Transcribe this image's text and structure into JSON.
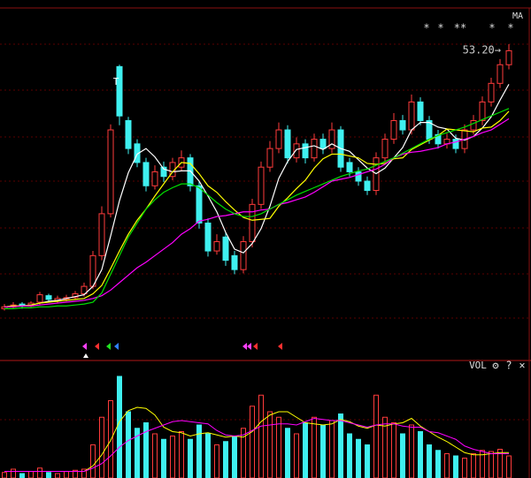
{
  "chart_data": {
    "type": "candlestick",
    "indicator": "MA",
    "markers": [
      "*",
      "*",
      "**",
      "*",
      "*"
    ],
    "annotations": {
      "high": "53.20→",
      "peak": "T"
    },
    "up_color": "#ff3b3b",
    "down_color": "#3ff0f0",
    "ylim": [
      20,
      57
    ],
    "open": [
      24.8,
      25.0,
      25.3,
      25.1,
      25.5,
      26.2,
      25.7,
      25.8,
      26.0,
      26.4,
      27.2,
      30.5,
      35.0,
      50.8,
      45.0,
      42.5,
      40.5,
      38.0,
      40.0,
      39.0,
      40.0,
      41.0,
      38.0,
      34.0,
      31.0,
      32.5,
      30.5,
      29.0,
      32.0,
      36.0,
      40.0,
      42.0,
      44.0,
      41.0,
      42.5,
      41.0,
      43.0,
      42.0,
      44.0,
      40.5,
      39.5,
      38.5,
      37.5,
      41.0,
      43.0,
      45.0,
      44.0,
      47.0,
      45.0,
      43.5,
      42.5,
      43.0,
      42.0,
      44.0,
      45.0,
      47.0,
      49.0,
      51.0
    ],
    "high": [
      25.3,
      25.5,
      25.5,
      25.6,
      26.6,
      26.4,
      26.2,
      26.3,
      26.7,
      27.6,
      31.0,
      35.8,
      44.6,
      51.0,
      45.4,
      43.0,
      41.0,
      40.2,
      40.6,
      41.0,
      41.8,
      41.4,
      38.5,
      34.5,
      32.8,
      33.0,
      31.0,
      32.6,
      36.6,
      40.6,
      42.8,
      44.8,
      44.5,
      43.2,
      43.0,
      43.6,
      43.6,
      44.8,
      44.4,
      41.0,
      40.0,
      39.0,
      41.6,
      43.6,
      45.8,
      45.6,
      47.8,
      47.5,
      45.5,
      44.0,
      43.6,
      43.5,
      44.6,
      45.6,
      47.6,
      49.6,
      51.6,
      53.2
    ],
    "low": [
      24.6,
      24.8,
      24.8,
      24.9,
      25.2,
      25.5,
      25.4,
      25.6,
      25.8,
      26.1,
      26.9,
      30.0,
      34.6,
      44.5,
      41.4,
      40.0,
      37.4,
      37.6,
      38.4,
      38.6,
      39.6,
      37.4,
      33.4,
      30.4,
      30.6,
      29.4,
      28.5,
      28.6,
      31.4,
      35.5,
      39.5,
      41.5,
      40.4,
      40.5,
      40.4,
      40.6,
      41.4,
      41.5,
      39.5,
      39.0,
      38.0,
      37.0,
      37.0,
      40.5,
      42.5,
      43.5,
      43.5,
      44.5,
      42.5,
      42.0,
      42.0,
      41.5,
      41.5,
      43.5,
      44.5,
      46.5,
      48.5,
      50.5
    ],
    "close": [
      25.0,
      25.2,
      25.1,
      25.4,
      26.3,
      25.8,
      25.9,
      26.0,
      26.4,
      27.2,
      30.5,
      35.0,
      44.0,
      45.5,
      42.0,
      40.5,
      38.0,
      39.5,
      39.0,
      40.5,
      41.0,
      38.0,
      34.0,
      31.0,
      32.0,
      30.0,
      29.0,
      32.0,
      36.0,
      40.0,
      42.0,
      44.0,
      41.0,
      42.5,
      41.0,
      43.0,
      42.0,
      44.0,
      40.0,
      39.5,
      38.5,
      37.5,
      41.0,
      43.0,
      45.0,
      44.0,
      47.0,
      45.0,
      43.0,
      42.5,
      43.0,
      42.0,
      44.0,
      45.0,
      47.0,
      49.0,
      51.0,
      52.5
    ],
    "ma_lines": [
      {
        "color": "#ffffff",
        "values": [
          25.0,
          25.1,
          25.1,
          25.2,
          25.4,
          25.6,
          25.7,
          25.9,
          26.1,
          26.3,
          27.2,
          29.0,
          32.6,
          36.4,
          39.4,
          41.4,
          42.0,
          41.1,
          39.8,
          39.5,
          39.6,
          39.6,
          38.5,
          36.9,
          35.2,
          33.0,
          31.2,
          30.8,
          31.8,
          33.4,
          35.8,
          38.8,
          40.6,
          41.9,
          42.1,
          42.3,
          41.9,
          42.5,
          42.0,
          41.7,
          40.8,
          39.9,
          39.3,
          39.9,
          41.0,
          42.1,
          44.0,
          44.8,
          44.8,
          44.3,
          44.1,
          43.1,
          42.9,
          43.3,
          44.2,
          45.4,
          47.2,
          48.9
        ]
      },
      {
        "color": "#ffff00",
        "values": [
          25.0,
          25.1,
          25.1,
          25.2,
          25.4,
          25.5,
          25.6,
          25.7,
          25.8,
          25.9,
          26.4,
          27.3,
          29.1,
          31.0,
          32.8,
          34.3,
          35.5,
          36.9,
          38.2,
          39.5,
          40.5,
          40.4,
          39.3,
          38.0,
          37.3,
          36.3,
          35.4,
          34.6,
          34.3,
          34.4,
          34.5,
          35.8,
          36.7,
          37.7,
          38.6,
          39.9,
          40.9,
          41.4,
          41.4,
          41.2,
          41.0,
          40.4,
          40.3,
          40.4,
          40.9,
          41.0,
          41.9,
          42.4,
          42.9,
          43.4,
          44.1,
          44.0,
          43.9,
          43.8,
          44.2,
          44.3,
          45.0,
          46.0
        ]
      },
      {
        "color": "#ff00ff",
        "values": [
          25.0,
          25.0,
          25.1,
          25.1,
          25.2,
          25.3,
          25.4,
          25.5,
          25.6,
          25.7,
          25.9,
          26.2,
          26.8,
          27.6,
          28.4,
          29.2,
          29.8,
          30.5,
          31.2,
          31.9,
          32.8,
          33.4,
          34.2,
          34.4,
          34.7,
          34.8,
          35.0,
          35.2,
          35.2,
          35.4,
          35.5,
          36.0,
          36.2,
          36.5,
          36.8,
          37.3,
          37.9,
          38.5,
          38.7,
          38.9,
          39.2,
          39.5,
          39.8,
          40.3,
          41.0,
          41.4,
          41.6,
          41.7,
          41.9,
          42.1,
          42.5,
          42.7,
          43.0,
          43.3,
          43.7,
          44.0,
          44.6,
          45.2
        ]
      },
      {
        "color": "#00e000",
        "values": [
          24.8,
          24.8,
          24.9,
          24.9,
          25.0,
          25.0,
          25.1,
          25.1,
          25.2,
          25.3,
          25.5,
          26.5,
          28.5,
          30.5,
          32.5,
          34.0,
          35.5,
          36.5,
          37.3,
          37.8,
          38.2,
          38.2,
          37.8,
          37.0,
          36.2,
          35.5,
          35.0,
          34.7,
          34.7,
          35.0,
          35.5,
          36.0,
          36.5,
          37.0,
          37.4,
          37.8,
          38.2,
          38.6,
          39.0,
          39.3,
          39.6,
          39.8,
          40.2,
          40.6,
          41.0,
          41.5,
          42.0,
          42.5,
          43.0,
          43.4,
          43.7,
          44.0,
          44.3,
          44.7,
          45.1,
          45.5,
          45.9,
          46.3
        ]
      }
    ],
    "volume": {
      "title": "VOL",
      "controls": [
        "⚙",
        "?",
        "×"
      ],
      "ylim": [
        0,
        100
      ],
      "values": [
        5,
        8,
        4,
        6,
        9,
        5,
        4,
        6,
        7,
        8,
        30,
        55,
        70,
        92,
        60,
        45,
        50,
        40,
        35,
        38,
        42,
        35,
        48,
        40,
        30,
        33,
        38,
        45,
        65,
        75,
        60,
        55,
        45,
        40,
        50,
        55,
        48,
        52,
        58,
        40,
        35,
        30,
        75,
        55,
        50,
        40,
        48,
        42,
        30,
        25,
        22,
        20,
        18,
        22,
        25,
        24,
        26,
        20
      ],
      "ma_lines": [
        {
          "color": "#ffff00",
          "values": [
            6,
            6,
            6,
            6,
            6,
            6,
            6,
            6,
            6,
            6,
            11,
            21,
            34,
            51,
            61,
            64,
            63,
            57,
            46,
            42,
            41,
            38,
            40,
            41,
            39,
            37,
            38,
            37,
            42,
            51,
            57,
            60,
            60,
            55,
            50,
            49,
            48,
            49,
            53,
            51,
            47,
            45,
            48,
            47,
            49,
            50,
            54,
            47,
            42,
            37,
            33,
            28,
            23,
            21,
            21,
            22,
            23,
            23
          ]
        },
        {
          "color": "#ff00ff",
          "values": [
            6,
            6,
            6,
            6,
            6,
            6,
            6,
            6,
            6,
            6,
            9,
            13,
            20,
            28,
            34,
            38,
            42,
            45,
            48,
            51,
            52,
            51,
            50,
            49,
            43,
            39,
            38,
            39,
            43,
            47,
            48,
            49,
            49,
            48,
            51,
            54,
            53,
            52,
            52,
            50,
            48,
            46,
            48,
            49,
            49,
            47,
            46,
            46,
            42,
            41,
            38,
            35,
            29,
            26,
            24,
            22,
            22,
            22
          ]
        }
      ]
    }
  }
}
